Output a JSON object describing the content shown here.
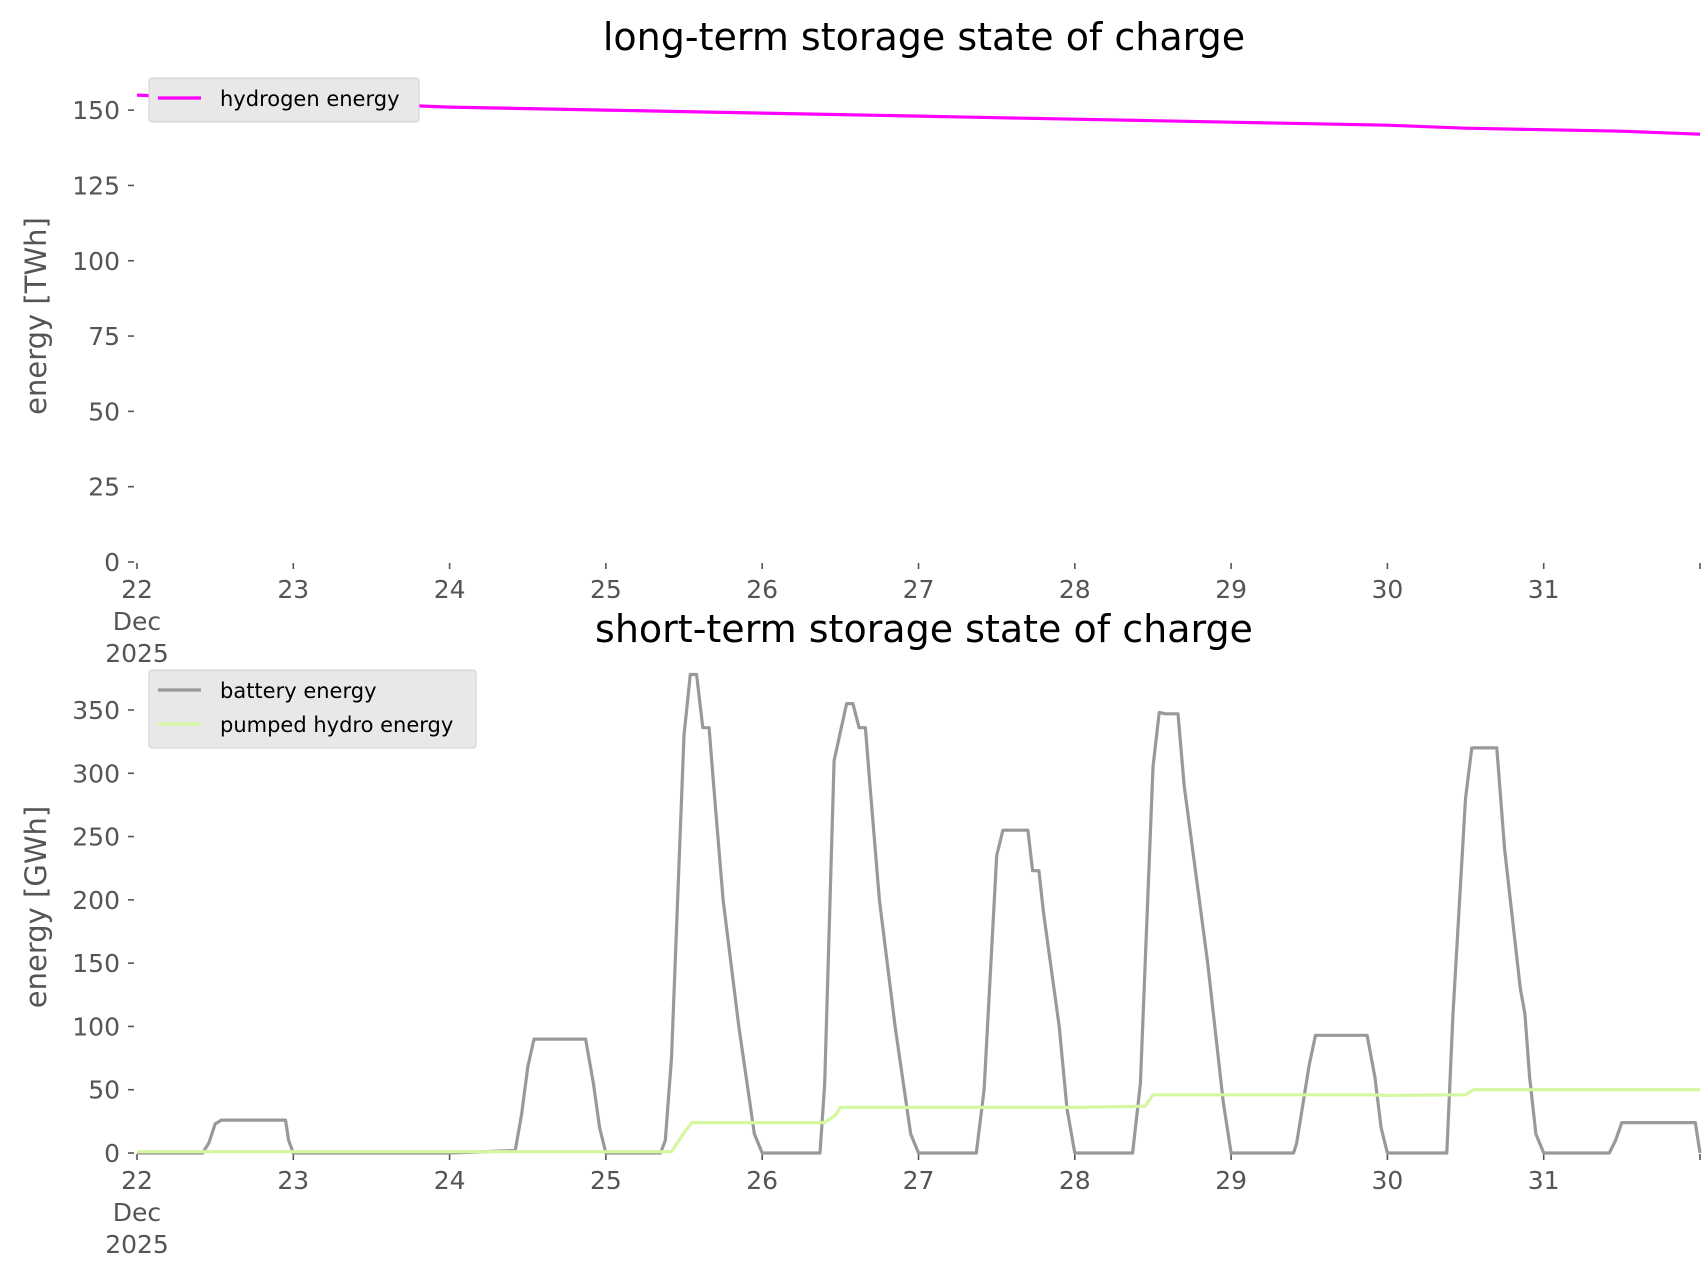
{
  "chart_data": [
    {
      "type": "line",
      "title": "long-term storage state of charge",
      "ylabel": "energy [TWh]",
      "ylim": [
        0,
        160
      ],
      "yticks": [
        0,
        25,
        50,
        75,
        100,
        125,
        150
      ],
      "xlim": [
        22,
        32
      ],
      "xticks": [
        {
          "value": 22,
          "lines": [
            "22",
            "Dec",
            "2025"
          ]
        },
        {
          "value": 23,
          "lines": [
            "23"
          ]
        },
        {
          "value": 24,
          "lines": [
            "24"
          ]
        },
        {
          "value": 25,
          "lines": [
            "25"
          ]
        },
        {
          "value": 26,
          "lines": [
            "26"
          ]
        },
        {
          "value": 27,
          "lines": [
            "27"
          ]
        },
        {
          "value": 28,
          "lines": [
            "28"
          ]
        },
        {
          "value": 29,
          "lines": [
            "29"
          ]
        },
        {
          "value": 30,
          "lines": [
            "30"
          ]
        },
        {
          "value": 31,
          "lines": [
            "31"
          ]
        }
      ],
      "grid": false,
      "legend_position": "top-left",
      "series": [
        {
          "name": "hydrogen energy",
          "color": "#ff00ff",
          "x": [
            22,
            22.5,
            23,
            23.5,
            24,
            24.5,
            25,
            25.5,
            26,
            26.5,
            27,
            27.5,
            28,
            28.5,
            29,
            29.5,
            30,
            30.5,
            31,
            31.5,
            32
          ],
          "y": [
            155,
            154,
            152.5,
            152,
            151,
            150.5,
            150,
            149.5,
            149,
            148.5,
            148,
            147.5,
            147,
            146.5,
            146,
            145.5,
            145,
            144,
            143.5,
            143,
            142
          ]
        }
      ]
    },
    {
      "type": "line",
      "title": "short-term storage state of charge",
      "ylabel": "energy [GWh]",
      "ylim": [
        0,
        380
      ],
      "yticks": [
        0,
        50,
        100,
        150,
        200,
        250,
        300,
        350
      ],
      "xlim": [
        22,
        32
      ],
      "xticks": [
        {
          "value": 22,
          "lines": [
            "22",
            "Dec",
            "2025"
          ]
        },
        {
          "value": 23,
          "lines": [
            "23"
          ]
        },
        {
          "value": 24,
          "lines": [
            "24"
          ]
        },
        {
          "value": 25,
          "lines": [
            "25"
          ]
        },
        {
          "value": 26,
          "lines": [
            "26"
          ]
        },
        {
          "value": 27,
          "lines": [
            "27"
          ]
        },
        {
          "value": 28,
          "lines": [
            "28"
          ]
        },
        {
          "value": 29,
          "lines": [
            "29"
          ]
        },
        {
          "value": 30,
          "lines": [
            "30"
          ]
        },
        {
          "value": 31,
          "lines": [
            "31"
          ]
        }
      ],
      "grid": false,
      "legend_position": "top-left",
      "series": [
        {
          "name": "battery energy",
          "color": "#999999",
          "x": [
            22,
            22.42,
            22.46,
            22.5,
            22.54,
            22.6,
            22.95,
            22.97,
            23.0,
            24.0,
            24.42,
            24.46,
            24.5,
            24.54,
            24.58,
            24.87,
            24.92,
            24.96,
            25.0,
            25.35,
            25.38,
            25.42,
            25.5,
            25.54,
            25.58,
            25.62,
            25.66,
            25.69,
            25.75,
            25.85,
            25.95,
            26.0,
            26.37,
            26.4,
            26.46,
            26.54,
            26.58,
            26.62,
            26.66,
            26.69,
            26.75,
            26.85,
            26.95,
            27.0,
            27.37,
            27.42,
            27.5,
            27.54,
            27.58,
            27.7,
            27.73,
            27.77,
            27.8,
            27.9,
            27.95,
            28.0,
            28.37,
            28.42,
            28.5,
            28.54,
            28.58,
            28.66,
            28.7,
            28.85,
            28.95,
            29.0,
            29.4,
            29.42,
            29.5,
            29.54,
            29.58,
            29.87,
            29.92,
            29.96,
            30.0,
            30.38,
            30.42,
            30.5,
            30.54,
            30.58,
            30.7,
            30.75,
            30.85,
            30.88,
            30.91,
            30.95,
            31.0,
            31.42,
            31.46,
            31.5,
            31.54,
            31.97,
            32.0
          ],
          "y": [
            0,
            0,
            8,
            23,
            26,
            26,
            26,
            10,
            0,
            0,
            2,
            30,
            68,
            90,
            90,
            90,
            55,
            20,
            0,
            0,
            10,
            75,
            330,
            378,
            378,
            336,
            336,
            290,
            200,
            100,
            15,
            0,
            0,
            55,
            310,
            355,
            355,
            336,
            336,
            290,
            200,
            100,
            15,
            0,
            0,
            50,
            235,
            255,
            255,
            255,
            223,
            223,
            190,
            100,
            35,
            0,
            0,
            55,
            305,
            348,
            347,
            347,
            290,
            150,
            40,
            0,
            0,
            8,
            70,
            93,
            93,
            93,
            60,
            20,
            0,
            0,
            110,
            280,
            320,
            320,
            320,
            240,
            130,
            110,
            60,
            15,
            0,
            0,
            10,
            24,
            24,
            24,
            0
          ]
        },
        {
          "name": "pumped hydro energy",
          "color": "#d4f7a0",
          "x": [
            22,
            25.42,
            25.5,
            25.55,
            26.0,
            26.4,
            26.47,
            26.5,
            27.0,
            28.0,
            28.45,
            28.5,
            29.0,
            29.9,
            30.0,
            30.5,
            30.55,
            31.0,
            32.0
          ],
          "y": [
            1,
            1,
            16,
            24,
            24,
            24,
            30,
            36,
            36,
            36,
            37,
            46,
            46,
            46,
            45.5,
            46,
            50,
            50,
            50
          ]
        }
      ]
    }
  ]
}
